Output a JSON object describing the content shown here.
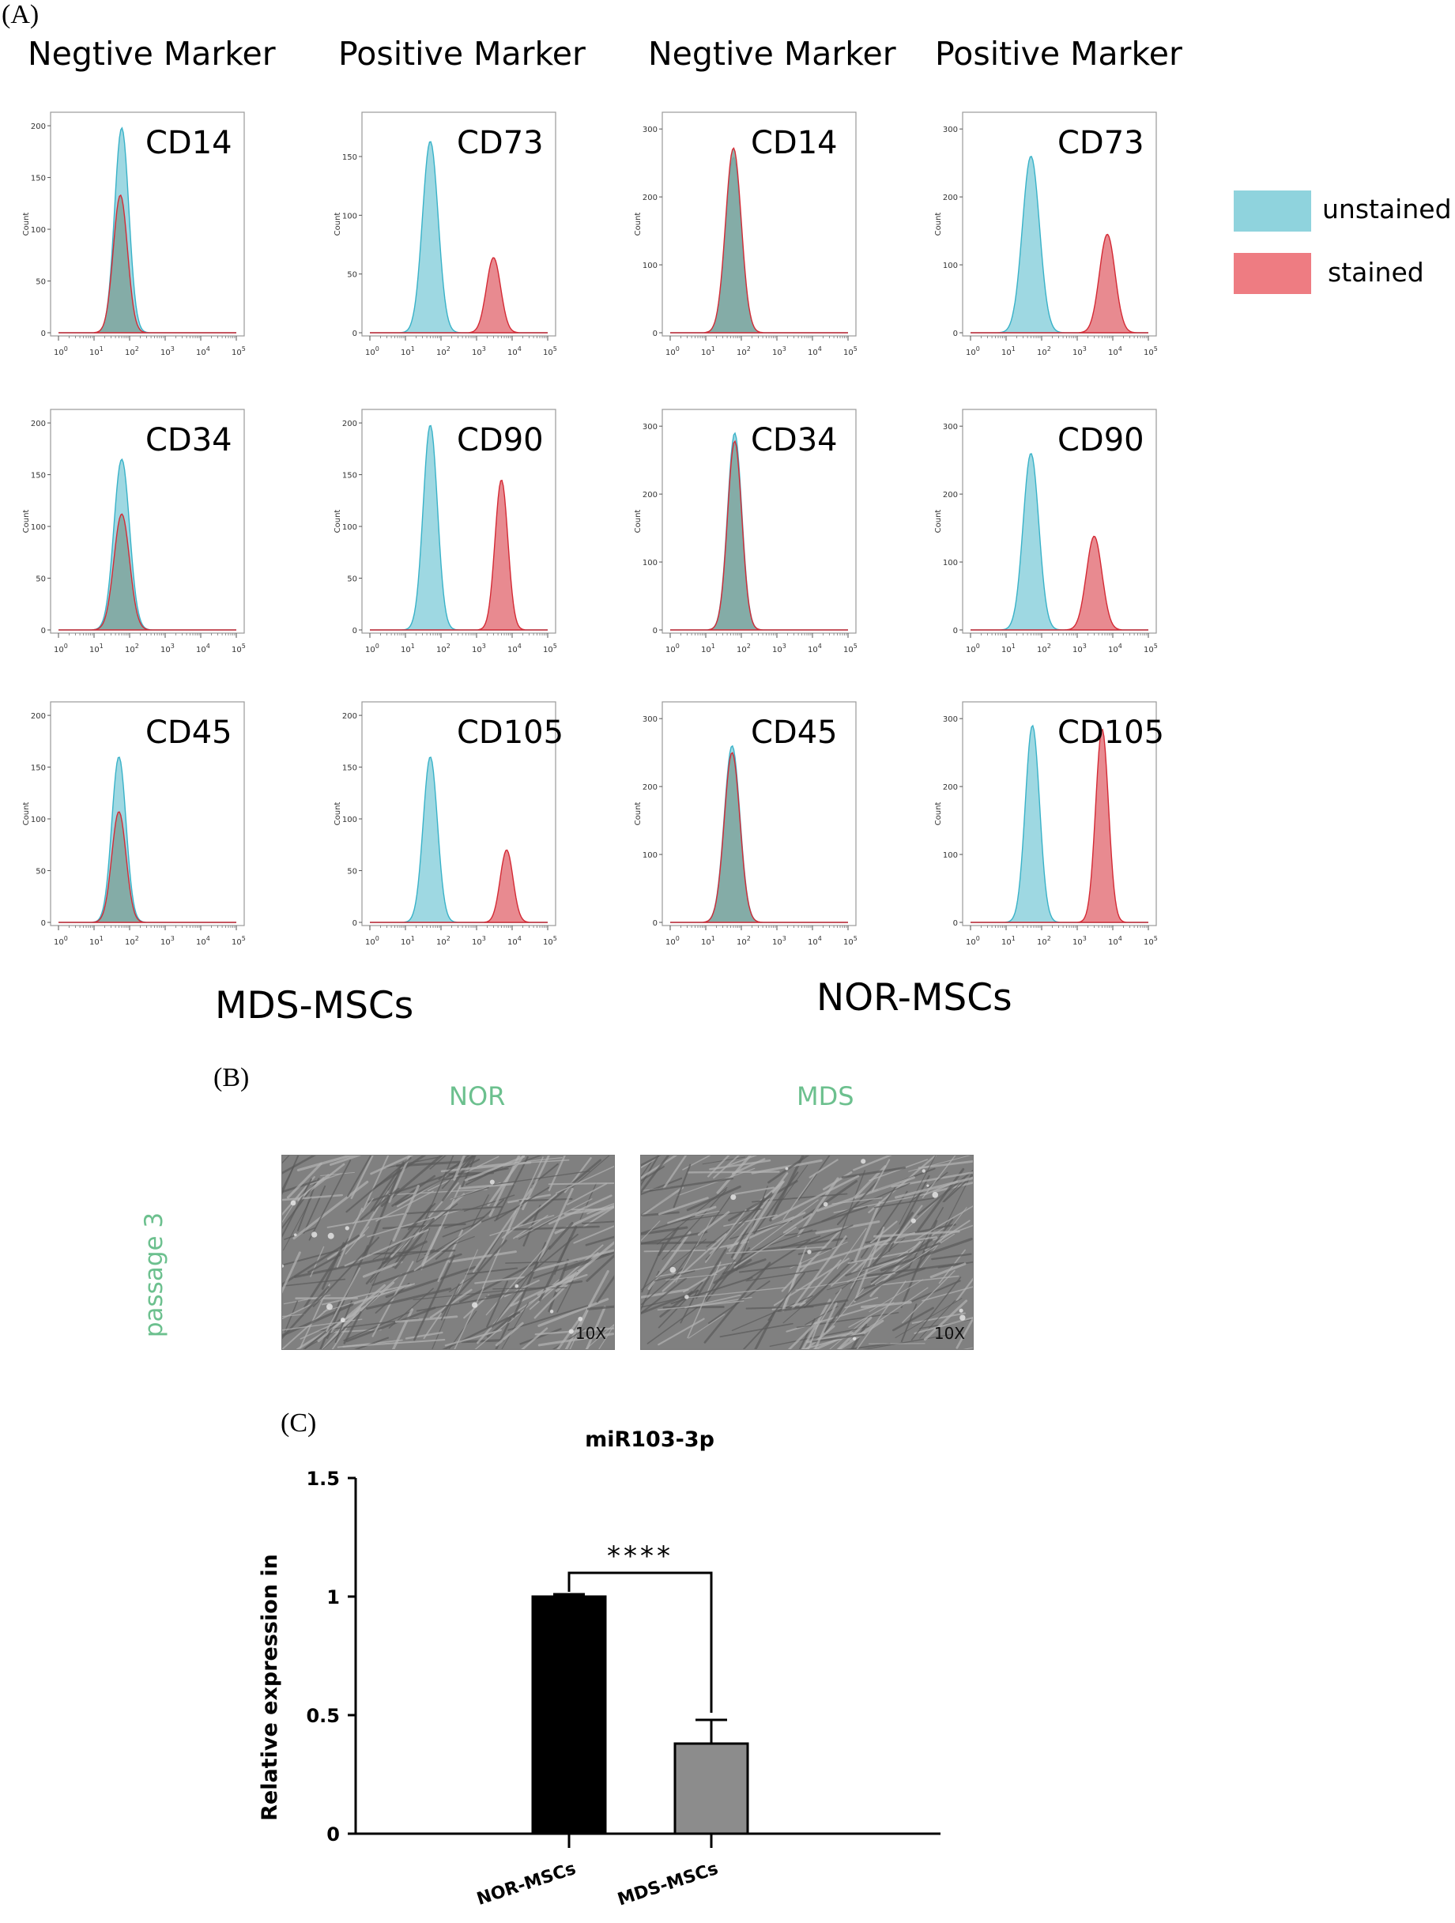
{
  "panel_a": {
    "letter": "(A)",
    "headers": [
      "Negtive  Marker",
      "Positive Marker",
      "Negtive  Marker",
      "Positive Marker"
    ],
    "group_labels": [
      "MDS-MSCs",
      "NOR-MSCs"
    ],
    "legend": [
      {
        "label": "unstained",
        "color": "#8fd3dd"
      },
      {
        "label": "stained",
        "color": "#ee7c82"
      }
    ],
    "colors": {
      "unstained_fill": "#9ed8e2",
      "unstained_line": "#39b2c8",
      "stained_fill": "#e88a90",
      "stained_line": "#d42a35",
      "overlap_fill": "#7fa49c"
    },
    "y_axis_label": "Count",
    "x_tick_labels": [
      "10",
      "10",
      "10",
      "10",
      "10",
      "10"
    ],
    "x_tick_exponents": [
      "0",
      "1",
      "2",
      "3",
      "4",
      "5"
    ]
  },
  "panel_b": {
    "letter": "(B)",
    "col_labels": [
      "NOR",
      "MDS"
    ],
    "row_label": "passage 3",
    "magnifications": [
      "10X",
      "10X"
    ]
  },
  "panel_c": {
    "letter": "(C)",
    "title": "miR103-3p",
    "ylabel": "Relative expression in",
    "significance": "****"
  },
  "chart_data": [
    {
      "type": "area",
      "group": "MDS-MSCs",
      "marker": "CD14",
      "marker_class": "negative",
      "ylim": [
        0,
        210
      ],
      "y_ticks": [
        0,
        50,
        100,
        150,
        200
      ],
      "x_scale": "log10",
      "xlim": [
        1,
        100000
      ],
      "series": [
        {
          "name": "unstained",
          "peak_x": 60,
          "peak_count": 198,
          "spread": 0.2
        },
        {
          "name": "stained",
          "peak_x": 55,
          "peak_count": 133,
          "spread": 0.2
        }
      ]
    },
    {
      "type": "area",
      "group": "MDS-MSCs",
      "marker": "CD73",
      "marker_class": "positive",
      "ylim": [
        0,
        185
      ],
      "y_ticks": [
        0,
        50,
        100,
        150
      ],
      "x_scale": "log10",
      "xlim": [
        1,
        100000
      ],
      "series": [
        {
          "name": "unstained",
          "peak_x": 50,
          "peak_count": 163,
          "spread": 0.22
        },
        {
          "name": "stained",
          "peak_x": 3000,
          "peak_count": 64,
          "spread": 0.2
        }
      ]
    },
    {
      "type": "area",
      "group": "NOR-MSCs",
      "marker": "CD14",
      "marker_class": "negative",
      "ylim": [
        0,
        320
      ],
      "y_ticks": [
        0,
        100,
        200,
        300
      ],
      "x_scale": "log10",
      "xlim": [
        1,
        100000
      ],
      "series": [
        {
          "name": "unstained",
          "peak_x": 60,
          "peak_count": 258,
          "spread": 0.22
        },
        {
          "name": "stained",
          "peak_x": 60,
          "peak_count": 272,
          "spread": 0.22
        }
      ]
    },
    {
      "type": "area",
      "group": "NOR-MSCs",
      "marker": "CD73",
      "marker_class": "positive",
      "ylim": [
        0,
        320
      ],
      "y_ticks": [
        0,
        100,
        200,
        300
      ],
      "x_scale": "log10",
      "xlim": [
        1,
        100000
      ],
      "series": [
        {
          "name": "unstained",
          "peak_x": 50,
          "peak_count": 260,
          "spread": 0.24
        },
        {
          "name": "stained",
          "peak_x": 7000,
          "peak_count": 145,
          "spread": 0.22
        }
      ]
    },
    {
      "type": "area",
      "group": "MDS-MSCs",
      "marker": "CD34",
      "marker_class": "negative",
      "ylim": [
        0,
        210
      ],
      "y_ticks": [
        0,
        50,
        100,
        150,
        200
      ],
      "x_scale": "log10",
      "xlim": [
        1,
        100000
      ],
      "series": [
        {
          "name": "unstained",
          "peak_x": 60,
          "peak_count": 165,
          "spread": 0.22
        },
        {
          "name": "stained",
          "peak_x": 60,
          "peak_count": 112,
          "spread": 0.22
        }
      ]
    },
    {
      "type": "area",
      "group": "MDS-MSCs",
      "marker": "CD90",
      "marker_class": "positive",
      "ylim": [
        0,
        210
      ],
      "y_ticks": [
        0,
        50,
        100,
        150,
        200
      ],
      "x_scale": "log10",
      "xlim": [
        1,
        100000
      ],
      "series": [
        {
          "name": "unstained",
          "peak_x": 50,
          "peak_count": 198,
          "spread": 0.2
        },
        {
          "name": "stained",
          "peak_x": 5000,
          "peak_count": 145,
          "spread": 0.18
        }
      ]
    },
    {
      "type": "area",
      "group": "NOR-MSCs",
      "marker": "CD34",
      "marker_class": "negative",
      "ylim": [
        0,
        320
      ],
      "y_ticks": [
        0,
        100,
        200,
        300
      ],
      "x_scale": "log10",
      "xlim": [
        1,
        100000
      ],
      "series": [
        {
          "name": "unstained",
          "peak_x": 65,
          "peak_count": 290,
          "spread": 0.2
        },
        {
          "name": "stained",
          "peak_x": 65,
          "peak_count": 278,
          "spread": 0.2
        }
      ]
    },
    {
      "type": "area",
      "group": "NOR-MSCs",
      "marker": "CD90",
      "marker_class": "positive",
      "ylim": [
        0,
        320
      ],
      "y_ticks": [
        0,
        100,
        200,
        300
      ],
      "x_scale": "log10",
      "xlim": [
        1,
        100000
      ],
      "series": [
        {
          "name": "unstained",
          "peak_x": 50,
          "peak_count": 260,
          "spread": 0.22
        },
        {
          "name": "stained",
          "peak_x": 3000,
          "peak_count": 138,
          "spread": 0.22
        }
      ]
    },
    {
      "type": "area",
      "group": "MDS-MSCs",
      "marker": "CD45",
      "marker_class": "negative",
      "ylim": [
        0,
        210
      ],
      "y_ticks": [
        0,
        50,
        100,
        150,
        200
      ],
      "x_scale": "log10",
      "xlim": [
        1,
        100000
      ],
      "series": [
        {
          "name": "unstained",
          "peak_x": 50,
          "peak_count": 160,
          "spread": 0.2
        },
        {
          "name": "stained",
          "peak_x": 50,
          "peak_count": 107,
          "spread": 0.2
        }
      ]
    },
    {
      "type": "area",
      "group": "MDS-MSCs",
      "marker": "CD105",
      "marker_class": "positive",
      "ylim": [
        0,
        210
      ],
      "y_ticks": [
        0,
        50,
        100,
        150,
        200
      ],
      "x_scale": "log10",
      "xlim": [
        1,
        100000
      ],
      "series": [
        {
          "name": "unstained",
          "peak_x": 50,
          "peak_count": 160,
          "spread": 0.2
        },
        {
          "name": "stained",
          "peak_x": 7000,
          "peak_count": 70,
          "spread": 0.18
        }
      ]
    },
    {
      "type": "area",
      "group": "NOR-MSCs",
      "marker": "CD45",
      "marker_class": "negative",
      "ylim": [
        0,
        320
      ],
      "y_ticks": [
        0,
        100,
        200,
        300
      ],
      "x_scale": "log10",
      "xlim": [
        1,
        100000
      ],
      "series": [
        {
          "name": "unstained",
          "peak_x": 55,
          "peak_count": 260,
          "spread": 0.22
        },
        {
          "name": "stained",
          "peak_x": 55,
          "peak_count": 250,
          "spread": 0.22
        }
      ]
    },
    {
      "type": "area",
      "group": "NOR-MSCs",
      "marker": "CD105",
      "marker_class": "positive",
      "ylim": [
        0,
        320
      ],
      "y_ticks": [
        0,
        100,
        200,
        300
      ],
      "x_scale": "log10",
      "xlim": [
        1,
        100000
      ],
      "series": [
        {
          "name": "unstained",
          "peak_x": 55,
          "peak_count": 290,
          "spread": 0.2
        },
        {
          "name": "stained",
          "peak_x": 5000,
          "peak_count": 285,
          "spread": 0.18
        }
      ]
    },
    {
      "type": "bar",
      "title": "miR103-3p",
      "xlabel": "",
      "ylabel": "Relative expression in",
      "categories": [
        "NOR-MSCs",
        "MDS-MSCs"
      ],
      "values": [
        1.0,
        0.38
      ],
      "errors": [
        0.01,
        0.1
      ],
      "colors": [
        "#000000",
        "#8c8c8c"
      ],
      "ylim": [
        0,
        1.5
      ],
      "y_ticks": [
        0,
        0.5,
        1,
        1.5
      ],
      "y_tick_labels": [
        "0",
        "0.5",
        "1",
        "1.5"
      ],
      "significance": "****"
    }
  ]
}
